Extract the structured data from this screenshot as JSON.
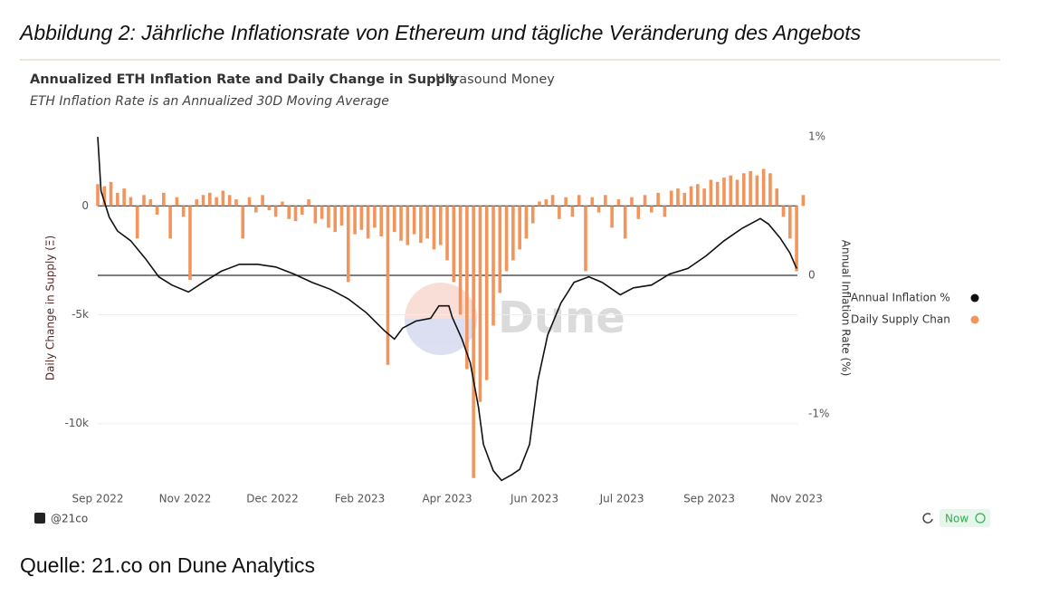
{
  "caption": "Abbildung 2: Jährliche Inflationsrate von Ethereum und tägliche Veränderung des Angebots",
  "source": "Quelle: 21.co on Dune Analytics",
  "footer": {
    "handle": "@21co",
    "status": "Now"
  },
  "chart_data": {
    "type": "bar-line",
    "title": "Annualized ETH Inflation Rate and Daily Change in Supply",
    "author": "Ultrasound Money",
    "subtitle": "ETH Inflation Rate is an Annualized 30D Moving Average",
    "watermark": "Dune",
    "y_label": "Daily Change in Supply (Ξ)",
    "y2_label": "Annual Inflation Rate (%)",
    "xlim": [
      0,
      430
    ],
    "xticks": [
      {
        "value": 0,
        "label": "Sep 2022"
      },
      {
        "value": 53,
        "label": "Nov 2022"
      },
      {
        "value": 106,
        "label": "Dec 2022"
      },
      {
        "value": 159,
        "label": "Feb 2023"
      },
      {
        "value": 212,
        "label": "Apr 2023"
      },
      {
        "value": 265,
        "label": "Jun 2023"
      },
      {
        "value": 318,
        "label": "Jul 2023"
      },
      {
        "value": 371,
        "label": "Sep 2023"
      },
      {
        "value": 424,
        "label": "Nov 2023"
      }
    ],
    "ylim": [
      -12800,
      3300
    ],
    "yticks": [
      0,
      {
        "value": -5000,
        "label": "-5k"
      },
      {
        "value": -10000,
        "label": "-10k"
      }
    ],
    "y2lim": [
      -1.51,
      1.02
    ],
    "y2ticks": [
      {
        "value": 1,
        "label": "1%"
      },
      0,
      {
        "value": -1,
        "label": "-1%"
      }
    ],
    "series": [
      {
        "name": "Annual Inflation %",
        "color": "#111111",
        "type": "line",
        "axis": "y2",
        "x": [
          0,
          2,
          7,
          12,
          20,
          29,
          37,
          45,
          55,
          64,
          75,
          86,
          97,
          108,
          119,
          130,
          141,
          152,
          163,
          174,
          180,
          185,
          193,
          202,
          207,
          213,
          215,
          221,
          226,
          231,
          234,
          240,
          245,
          251,
          256,
          262,
          267,
          273,
          281,
          289,
          298,
          306,
          317,
          325,
          336,
          347,
          358,
          369,
          380,
          391,
          402,
          407,
          414,
          420,
          424
        ],
        "values": [
          1.0,
          0.61,
          0.42,
          0.32,
          0.25,
          0.12,
          -0.01,
          -0.07,
          -0.12,
          -0.05,
          0.03,
          0.08,
          0.08,
          0.06,
          0.01,
          -0.05,
          -0.1,
          -0.17,
          -0.27,
          -0.4,
          -0.46,
          -0.38,
          -0.33,
          -0.31,
          -0.22,
          -0.22,
          -0.3,
          -0.46,
          -0.63,
          -0.95,
          -1.22,
          -1.41,
          -1.48,
          -1.44,
          -1.4,
          -1.22,
          -0.76,
          -0.43,
          -0.2,
          -0.05,
          -0.01,
          -0.05,
          -0.14,
          -0.09,
          -0.07,
          0.01,
          0.05,
          0.14,
          0.25,
          0.34,
          0.41,
          0.37,
          0.27,
          0.16,
          0.05
        ]
      },
      {
        "name": "Daily Supply Chan",
        "color": "#f2955c",
        "type": "bar",
        "axis": "y",
        "x": [
          0,
          4,
          8,
          12,
          16,
          20,
          24,
          28,
          32,
          36,
          40,
          44,
          48,
          52,
          56,
          60,
          64,
          68,
          72,
          76,
          80,
          84,
          88,
          92,
          96,
          100,
          104,
          108,
          112,
          116,
          120,
          124,
          128,
          132,
          136,
          140,
          144,
          148,
          152,
          156,
          160,
          164,
          168,
          172,
          176,
          180,
          184,
          188,
          192,
          196,
          200,
          204,
          208,
          212,
          216,
          220,
          224,
          228,
          232,
          236,
          240,
          244,
          248,
          252,
          256,
          260,
          264,
          268,
          272,
          276,
          280,
          284,
          288,
          292,
          296,
          300,
          304,
          308,
          312,
          316,
          320,
          324,
          328,
          332,
          336,
          340,
          344,
          348,
          352,
          356,
          360,
          364,
          368,
          372,
          376,
          380,
          384,
          388,
          392,
          396,
          400,
          404,
          408,
          412,
          416,
          420,
          424,
          428
        ],
        "values": [
          1000,
          900,
          1100,
          600,
          800,
          400,
          -1500,
          500,
          300,
          -400,
          600,
          -1500,
          400,
          -500,
          -3400,
          300,
          500,
          600,
          400,
          700,
          500,
          300,
          -1500,
          400,
          -300,
          500,
          -200,
          -500,
          200,
          -600,
          -700,
          -400,
          300,
          -800,
          -600,
          -1000,
          -1200,
          -900,
          -3500,
          -1300,
          -1100,
          -1500,
          -1000,
          -1400,
          -7300,
          -1200,
          -1600,
          -1800,
          -1300,
          -1700,
          -1500,
          -2000,
          -1800,
          -2500,
          -3500,
          -5000,
          -7500,
          -12500,
          -9000,
          -8000,
          -5500,
          -4000,
          -3000,
          -2500,
          -2000,
          -1500,
          -800,
          200,
          300,
          500,
          -600,
          400,
          -500,
          500,
          -3000,
          400,
          -300,
          500,
          -1000,
          300,
          -1500,
          400,
          -600,
          500,
          -300,
          600,
          -500,
          700,
          800,
          600,
          900,
          1000,
          800,
          1200,
          1100,
          1300,
          1400,
          1200,
          1500,
          1600,
          1400,
          1700,
          1500,
          800,
          -500,
          -1500,
          -3000,
          500
        ]
      }
    ]
  }
}
